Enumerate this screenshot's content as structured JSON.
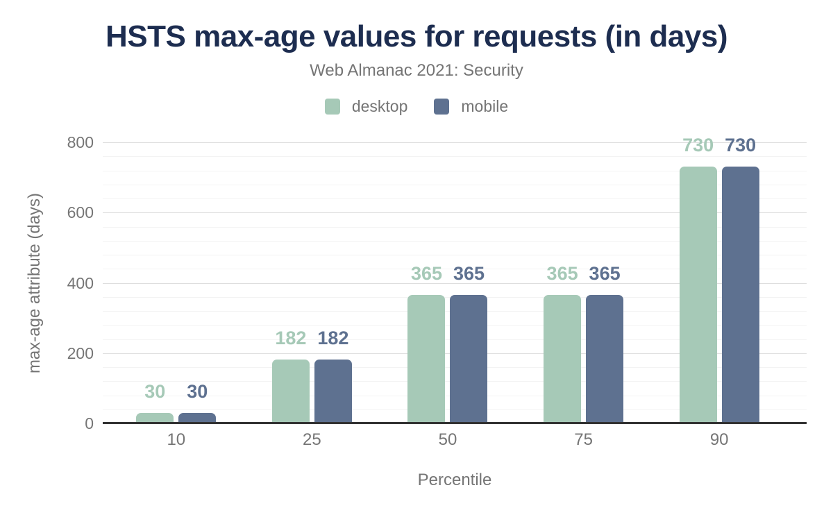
{
  "title": "HSTS max-age values for requests (in days)",
  "subtitle": "Web Almanac 2021: Security",
  "chart_data": {
    "type": "bar",
    "categories": [
      "10",
      "25",
      "50",
      "75",
      "90"
    ],
    "series": [
      {
        "name": "desktop",
        "color": "#a6c9b7",
        "values": [
          30,
          182,
          365,
          365,
          730
        ]
      },
      {
        "name": "mobile",
        "color": "#5e7190",
        "values": [
          30,
          182,
          365,
          365,
          730
        ]
      }
    ],
    "data_labels_shown": true,
    "xlabel": "Percentile",
    "ylabel": "max-age attribute (days)",
    "ylim": [
      0,
      800
    ],
    "y_major_ticks": [
      0,
      200,
      400,
      600,
      800
    ],
    "y_minor_step": 40,
    "grid": "horizontal, major and minor lines, no vertical grid",
    "legend_position": "top-center"
  },
  "colors": {
    "background": "#ffffff",
    "title": "#1d2d50",
    "axis_text": "#757575",
    "axis_line": "#333333",
    "grid_major": "#dedede",
    "grid_minor": "#f3f3f3",
    "desktop": "#a6c9b7",
    "mobile": "#5e7190"
  }
}
